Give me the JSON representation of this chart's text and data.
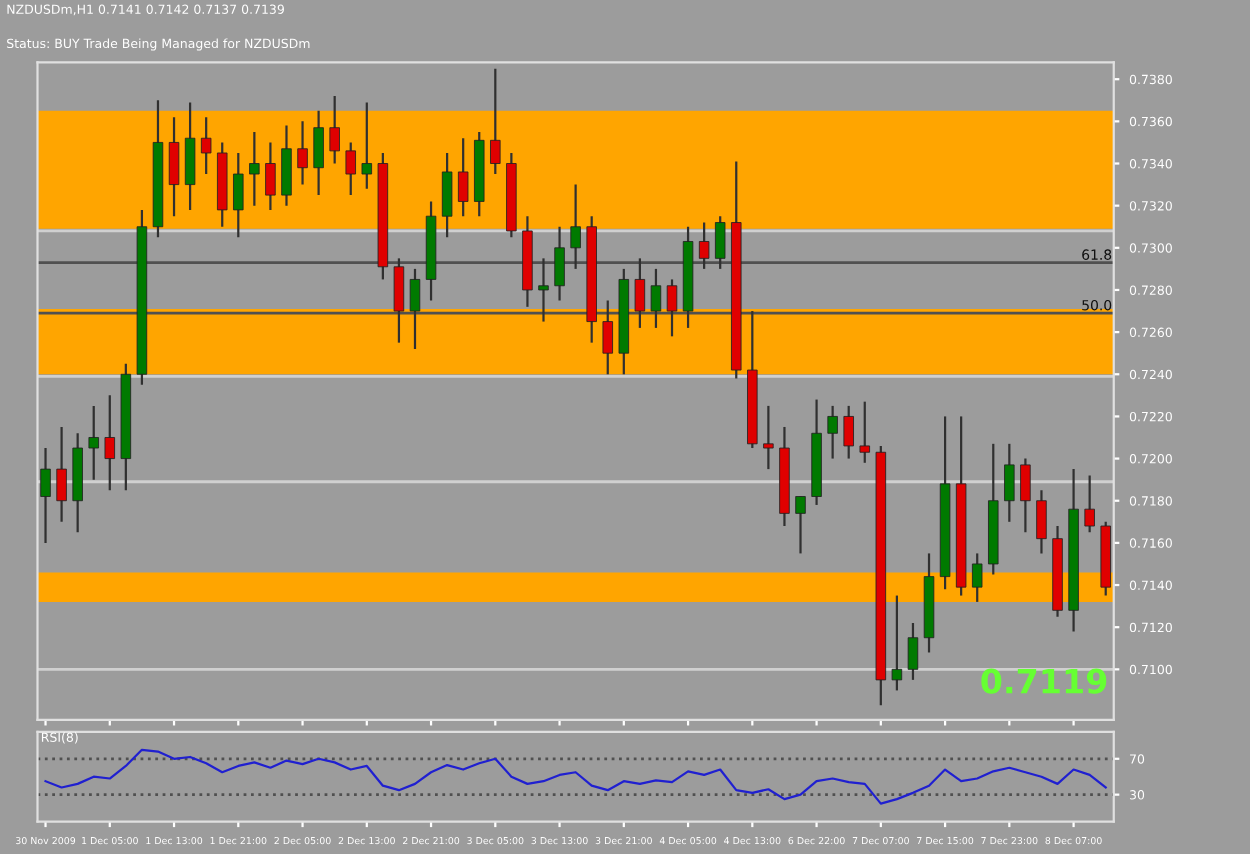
{
  "chart_data": [
    {
      "type": "candlestick",
      "title": "NZDUSDm,H1 0.7141 0.7142 0.7137 0.7139",
      "tick_labels": "y",
      "grid": false,
      "categories": [
        null,
        null,
        null,
        null,
        null,
        null,
        null,
        null,
        null,
        null,
        null,
        null,
        null,
        null,
        null,
        null,
        null,
        null,
        null,
        null,
        null,
        null,
        null,
        null,
        null,
        null,
        null,
        null,
        null,
        null,
        null,
        null,
        null,
        null,
        null,
        null,
        null,
        null,
        null,
        null,
        null,
        null,
        null,
        null,
        null,
        null,
        null,
        null,
        null,
        null,
        null,
        null,
        null,
        null,
        null,
        null,
        null,
        null,
        null,
        null,
        null,
        null,
        null,
        null,
        null,
        null,
        null
      ],
      "ohlc": [
        [
          0.7182,
          0.7205,
          0.716,
          0.7195
        ],
        [
          0.7195,
          0.7215,
          0.717,
          0.718
        ],
        [
          0.718,
          0.7212,
          0.7165,
          0.7205
        ],
        [
          0.7205,
          0.7225,
          0.719,
          0.721
        ],
        [
          0.721,
          0.723,
          0.7185,
          0.72
        ],
        [
          0.72,
          0.7245,
          0.7185,
          0.724
        ],
        [
          0.724,
          0.7318,
          0.7235,
          0.731
        ],
        [
          0.731,
          0.737,
          0.7305,
          0.735
        ],
        [
          0.735,
          0.7362,
          0.7315,
          0.733
        ],
        [
          0.733,
          0.7369,
          0.7318,
          0.7352
        ],
        [
          0.7352,
          0.7362,
          0.7335,
          0.7345
        ],
        [
          0.7345,
          0.735,
          0.731,
          0.7318
        ],
        [
          0.7318,
          0.7345,
          0.7305,
          0.7335
        ],
        [
          0.7335,
          0.7355,
          0.732,
          0.734
        ],
        [
          0.734,
          0.735,
          0.7318,
          0.7325
        ],
        [
          0.7325,
          0.7358,
          0.732,
          0.7347
        ],
        [
          0.7347,
          0.736,
          0.733,
          0.7338
        ],
        [
          0.7338,
          0.7365,
          0.7325,
          0.7357
        ],
        [
          0.7357,
          0.7372,
          0.734,
          0.7346
        ],
        [
          0.7346,
          0.735,
          0.7325,
          0.7335
        ],
        [
          0.7335,
          0.7369,
          0.7328,
          0.734
        ],
        [
          0.734,
          0.7345,
          0.7285,
          0.7291
        ],
        [
          0.7291,
          0.7295,
          0.7255,
          0.727
        ],
        [
          0.727,
          0.729,
          0.7252,
          0.7285
        ],
        [
          0.7285,
          0.7322,
          0.7275,
          0.7315
        ],
        [
          0.7315,
          0.7345,
          0.7305,
          0.7336
        ],
        [
          0.7336,
          0.7352,
          0.7315,
          0.7322
        ],
        [
          0.7322,
          0.7355,
          0.7315,
          0.7351
        ],
        [
          0.7351,
          0.7385,
          0.7335,
          0.734
        ],
        [
          0.734,
          0.7345,
          0.7305,
          0.7308
        ],
        [
          0.7308,
          0.7315,
          0.7272,
          0.728
        ],
        [
          0.728,
          0.7295,
          0.7265,
          0.7282
        ],
        [
          0.7282,
          0.731,
          0.7275,
          0.73
        ],
        [
          0.73,
          0.733,
          0.729,
          0.731
        ],
        [
          0.731,
          0.7315,
          0.7255,
          0.7265
        ],
        [
          0.7265,
          0.7275,
          0.724,
          0.725
        ],
        [
          0.725,
          0.729,
          0.724,
          0.7285
        ],
        [
          0.7285,
          0.7295,
          0.7262,
          0.727
        ],
        [
          0.727,
          0.729,
          0.7262,
          0.7282
        ],
        [
          0.7282,
          0.7285,
          0.7258,
          0.727
        ],
        [
          0.727,
          0.731,
          0.7262,
          0.7303
        ],
        [
          0.7303,
          0.7312,
          0.729,
          0.7295
        ],
        [
          0.7295,
          0.7315,
          0.729,
          0.7312
        ],
        [
          0.7312,
          0.7341,
          0.7238,
          0.7242
        ],
        [
          0.7242,
          0.727,
          0.7205,
          0.7207
        ],
        [
          0.7207,
          0.7225,
          0.7195,
          0.7205
        ],
        [
          0.7205,
          0.7215,
          0.7168,
          0.7174
        ],
        [
          0.7174,
          0.7182,
          0.7155,
          0.7182
        ],
        [
          0.7182,
          0.7228,
          0.7178,
          0.7212
        ],
        [
          0.7212,
          0.7225,
          0.72,
          0.722
        ],
        [
          0.722,
          0.7225,
          0.72,
          0.7206
        ],
        [
          0.7206,
          0.7227,
          0.7198,
          0.7203
        ],
        [
          0.7203,
          0.7206,
          0.7083,
          0.7095
        ],
        [
          0.7095,
          0.7135,
          0.709,
          0.71
        ],
        [
          0.71,
          0.7122,
          0.7095,
          0.7115
        ],
        [
          0.7115,
          0.7155,
          0.7108,
          0.7144
        ],
        [
          0.7144,
          0.722,
          0.7138,
          0.7188
        ],
        [
          0.7188,
          0.722,
          0.7135,
          0.7139
        ],
        [
          0.7139,
          0.7155,
          0.7132,
          0.715
        ],
        [
          0.715,
          0.7207,
          0.7145,
          0.718
        ],
        [
          0.718,
          0.7207,
          0.717,
          0.7197
        ],
        [
          0.7197,
          0.72,
          0.7165,
          0.718
        ],
        [
          0.718,
          0.7185,
          0.7155,
          0.7162
        ],
        [
          0.7162,
          0.7168,
          0.7125,
          0.7128
        ],
        [
          0.7128,
          0.7195,
          0.7118,
          0.7176
        ],
        [
          0.7176,
          0.7192,
          0.7165,
          0.7168
        ],
        [
          0.7168,
          0.717,
          0.7135,
          0.7139
        ]
      ],
      "ylim": [
        0.7076,
        0.7388
      ],
      "yticks": [
        {
          "value": 0.71,
          "label": "0.7100"
        },
        {
          "value": 0.712,
          "label": "0.7120"
        },
        {
          "value": 0.714,
          "label": "0.7140"
        },
        {
          "value": 0.716,
          "label": "0.7160"
        },
        {
          "value": 0.718,
          "label": "0.7180"
        },
        {
          "value": 0.72,
          "label": "0.7200"
        },
        {
          "value": 0.722,
          "label": "0.7220"
        },
        {
          "value": 0.724,
          "label": "0.7240"
        },
        {
          "value": 0.726,
          "label": "0.7260"
        },
        {
          "value": 0.728,
          "label": "0.7280"
        },
        {
          "value": 0.73,
          "label": "0.7300"
        },
        {
          "value": 0.732,
          "label": "0.7320"
        },
        {
          "value": 0.734,
          "label": "0.7340"
        },
        {
          "value": 0.736,
          "label": "0.7360"
        },
        {
          "value": 0.738,
          "label": "0.7380"
        }
      ],
      "bands": [
        {
          "axis": "y",
          "from": 0.7309,
          "to": 0.7365,
          "color": "#ffa500"
        },
        {
          "axis": "y",
          "from": 0.724,
          "to": 0.7271,
          "color": "#ffa500"
        },
        {
          "axis": "y",
          "from": 0.7132,
          "to": 0.7146,
          "color": "#ffa500"
        }
      ],
      "ref_lines": [
        {
          "axis": "y",
          "value": 0.7308,
          "color": "#d0d0d0"
        },
        {
          "axis": "y",
          "value": 0.7293,
          "color": "#505050"
        },
        {
          "axis": "y",
          "value": 0.7269,
          "color": "#505050"
        },
        {
          "axis": "y",
          "value": 0.7239,
          "color": "#d0d0d0"
        },
        {
          "axis": "y",
          "value": 0.7189,
          "color": "#d0d0d0"
        },
        {
          "axis": "y",
          "value": 0.71,
          "color": "#d0d0d0"
        }
      ],
      "annotations": [
        "Status: BUY Trade Being Managed for NZDUSDm",
        "0.7119",
        {
          "text": "61.8",
          "y": 0.7293
        },
        {
          "text": "50.0",
          "y": 0.7269
        }
      ]
    },
    {
      "type": "line",
      "title": "RSI(8)",
      "grid": false,
      "categories": [
        "30 Nov 2009",
        null,
        null,
        null,
        "1 Dec 05:00",
        null,
        null,
        null,
        "1 Dec 13:00",
        null,
        null,
        null,
        "1 Dec 21:00",
        null,
        null,
        null,
        "2 Dec 05:00",
        null,
        null,
        null,
        "2 Dec 13:00",
        null,
        null,
        null,
        "2 Dec 21:00",
        null,
        null,
        null,
        "3 Dec 05:00",
        null,
        null,
        null,
        "3 Dec 13:00",
        null,
        null,
        null,
        "3 Dec 21:00",
        null,
        null,
        null,
        "4 Dec 05:00",
        null,
        null,
        null,
        "4 Dec 13:00",
        null,
        null,
        null,
        "6 Dec 22:00",
        null,
        null,
        null,
        "7 Dec 07:00",
        null,
        null,
        null,
        "7 Dec 15:00",
        null,
        null,
        null,
        "7 Dec 23:00",
        null,
        null,
        null,
        "8 Dec 07:00",
        null,
        null
      ],
      "series": [
        {
          "color": "#2020d0",
          "values": [
            45,
            38,
            42,
            50,
            48,
            62,
            80,
            78,
            70,
            72,
            65,
            55,
            62,
            66,
            60,
            68,
            64,
            70,
            66,
            58,
            62,
            40,
            35,
            42,
            55,
            63,
            58,
            65,
            70,
            50,
            42,
            45,
            52,
            55,
            40,
            35,
            45,
            42,
            46,
            44,
            56,
            52,
            58,
            35,
            32,
            36,
            25,
            30,
            45,
            48,
            44,
            42,
            20,
            25,
            32,
            40,
            58,
            45,
            48,
            56,
            60,
            55,
            50,
            42,
            58,
            52,
            38
          ]
        }
      ],
      "ylim": [
        0,
        100
      ],
      "yticks": [
        30,
        70
      ],
      "ref_lines": [
        {
          "axis": "y",
          "value": 30,
          "color": "#505050",
          "line_style": "dotted"
        },
        {
          "axis": "y",
          "value": 70,
          "color": "#505050",
          "line_style": "dotted"
        }
      ]
    }
  ]
}
